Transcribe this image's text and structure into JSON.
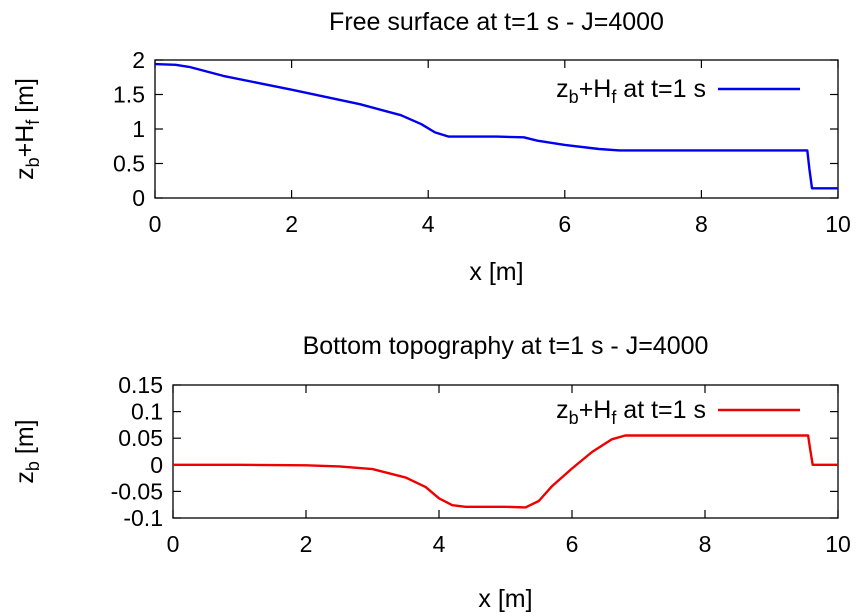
{
  "chart_data": [
    {
      "type": "line",
      "title": "Free surface at t=1 s - J=4000",
      "xlabel": "x [m]",
      "ylabel": "z_b+H_f [m]",
      "xlim": [
        0,
        10
      ],
      "ylim": [
        0,
        2
      ],
      "xticks": [
        "0",
        "2",
        "4",
        "6",
        "8",
        "10"
      ],
      "yticks": [
        "0",
        "0.5",
        "1",
        "1.5",
        "2"
      ],
      "grid": false,
      "legend_position": "top-right",
      "series": [
        {
          "name": "z_b+H_f at t=1 s",
          "color": "#0000ee",
          "x": [
            0,
            0.3,
            0.5,
            1.0,
            2.0,
            3.0,
            3.6,
            3.9,
            4.1,
            4.3,
            5.0,
            5.4,
            5.6,
            6.0,
            6.5,
            6.8,
            7.5,
            8.5,
            9.0,
            9.55,
            9.58,
            9.62,
            10.0
          ],
          "y": [
            1.94,
            1.93,
            1.9,
            1.77,
            1.57,
            1.36,
            1.2,
            1.07,
            0.95,
            0.89,
            0.89,
            0.88,
            0.83,
            0.77,
            0.71,
            0.69,
            0.69,
            0.69,
            0.69,
            0.69,
            0.43,
            0.14,
            0.14
          ]
        }
      ]
    },
    {
      "type": "line",
      "title": "Bottom topography at t=1 s - J=4000",
      "xlabel": "x [m]",
      "ylabel": "z_b [m]",
      "xlim": [
        0,
        10
      ],
      "ylim": [
        -0.1,
        0.15
      ],
      "xticks": [
        "0",
        "2",
        "4",
        "6",
        "8",
        "10"
      ],
      "yticks": [
        "-0.1",
        "-0.05",
        "0",
        "0.05",
        "0.1",
        "0.15"
      ],
      "grid": false,
      "legend_position": "top-right",
      "series": [
        {
          "name": "z_b+H_f at t=1 s",
          "color": "#ee0000",
          "x": [
            0,
            1.0,
            2.0,
            2.5,
            3.0,
            3.5,
            3.8,
            4.0,
            4.2,
            4.4,
            5.0,
            5.3,
            5.5,
            5.7,
            6.0,
            6.3,
            6.6,
            6.8,
            7.0,
            8.0,
            9.0,
            9.55,
            9.58,
            9.62,
            10.0
          ],
          "y": [
            0.0,
            0.0,
            -0.001,
            -0.003,
            -0.008,
            -0.024,
            -0.042,
            -0.063,
            -0.076,
            -0.079,
            -0.079,
            -0.08,
            -0.068,
            -0.04,
            -0.007,
            0.024,
            0.048,
            0.055,
            0.055,
            0.055,
            0.055,
            0.055,
            0.03,
            0.0,
            0.0
          ]
        }
      ]
    }
  ]
}
